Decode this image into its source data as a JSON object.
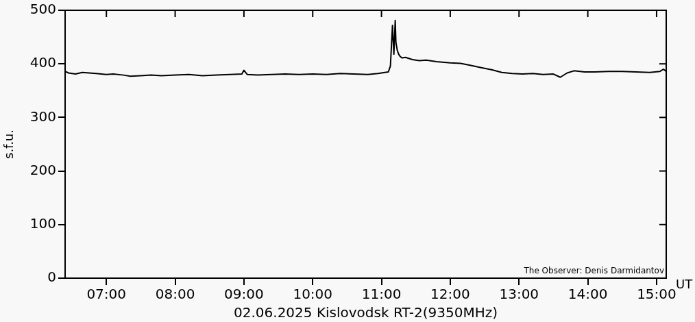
{
  "chart_data": {
    "type": "line",
    "xlabel": "02.06.2025 Kislovodsk RT-2(9350MHz)",
    "ylabel": "s.f.u.",
    "annotations": [
      "The Observer: Denis Darmidantov",
      "UT"
    ],
    "xlim": [
      6.4,
      15.14
    ],
    "ylim": [
      0,
      500
    ],
    "yticks": [
      0,
      100,
      200,
      300,
      400,
      500
    ],
    "xticks": [
      {
        "value": 7,
        "label": "07:00"
      },
      {
        "value": 8,
        "label": "08:00"
      },
      {
        "value": 9,
        "label": "09:00"
      },
      {
        "value": 10,
        "label": "10:00"
      },
      {
        "value": 11,
        "label": "11:00"
      },
      {
        "value": 12,
        "label": "12:00"
      },
      {
        "value": 13,
        "label": "13:00"
      },
      {
        "value": 14,
        "label": "14:00"
      },
      {
        "value": 15,
        "label": "15:00"
      }
    ],
    "grid": false,
    "legend": false,
    "marker": "none",
    "line_style": "solid",
    "series": [
      {
        "color": "#000000",
        "x": [
          6.4,
          6.45,
          6.55,
          6.65,
          6.75,
          6.85,
          7.0,
          7.1,
          7.25,
          7.35,
          7.5,
          7.65,
          7.8,
          8.0,
          8.2,
          8.4,
          8.6,
          8.8,
          8.97,
          9.0,
          9.05,
          9.2,
          9.4,
          9.6,
          9.8,
          10.0,
          10.2,
          10.4,
          10.6,
          10.8,
          10.95,
          11.05,
          11.1,
          11.13,
          11.16,
          11.18,
          11.2,
          11.21,
          11.23,
          11.25,
          11.27,
          11.3,
          11.35,
          11.45,
          11.55,
          11.65,
          11.8,
          12.0,
          12.15,
          12.3,
          12.45,
          12.6,
          12.75,
          12.9,
          13.05,
          13.2,
          13.35,
          13.5,
          13.6,
          13.7,
          13.8,
          13.95,
          14.1,
          14.3,
          14.5,
          14.7,
          14.9,
          15.05,
          15.1,
          15.14
        ],
        "values": [
          386,
          383,
          381,
          384,
          383,
          382,
          380,
          381,
          379,
          377,
          378,
          379,
          378,
          379,
          380,
          378,
          379,
          380,
          381,
          388,
          380,
          379,
          380,
          381,
          380,
          381,
          380,
          382,
          381,
          380,
          382,
          384,
          385,
          396,
          472,
          418,
          481,
          440,
          425,
          418,
          414,
          411,
          412,
          408,
          406,
          407,
          404,
          402,
          401,
          397,
          393,
          389,
          384,
          382,
          381,
          382,
          380,
          381,
          375,
          383,
          387,
          385,
          385,
          386,
          386,
          385,
          384,
          386,
          390,
          386
        ]
      }
    ]
  }
}
